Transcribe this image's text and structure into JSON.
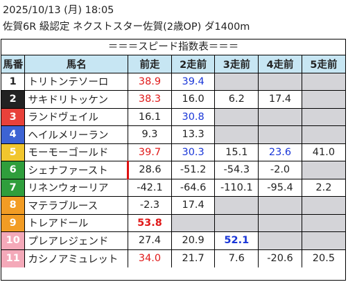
{
  "header": {
    "line1": "2025/10/13 (月) 18:05",
    "line2": "佐賀6R 級認定 ネクストスター佐賀(2歳OP) ダ1400m"
  },
  "banner": "＝＝＝スピード指数表＝＝＝",
  "columns": [
    "馬番",
    "馬名",
    "前走",
    "2走前",
    "3走前",
    "4走前",
    "5走前"
  ],
  "colors": {
    "header_bg": "#c7e6f3",
    "empty_cell": "#d4d4d8",
    "red": "#e01919",
    "blue": "#1936d8",
    "waku": {
      "1": {
        "bg": "#ffffff",
        "fg": "#222222"
      },
      "2": {
        "bg": "#222222",
        "fg": "#ffffff"
      },
      "3": {
        "bg": "#e8413a",
        "fg": "#ffffff"
      },
      "4": {
        "bg": "#3d63d3",
        "fg": "#ffffff"
      },
      "5": {
        "bg": "#f1c62e",
        "fg": "#ffffff"
      },
      "6": {
        "bg": "#2f9e3c",
        "fg": "#ffffff"
      },
      "7": {
        "bg": "#f29c24",
        "fg": "#ffffff"
      },
      "8": {
        "bg": "#f4a9b9",
        "fg": "#ffffff"
      }
    }
  },
  "rows": [
    {
      "num": "1",
      "waku": 1,
      "name": "トリトンテソーロ",
      "mark": false,
      "cells": [
        {
          "v": "38.9",
          "c": "red"
        },
        {
          "v": "39.4",
          "c": "blue"
        },
        {
          "v": ""
        },
        {
          "v": ""
        },
        {
          "v": ""
        }
      ]
    },
    {
      "num": "2",
      "waku": 2,
      "name": "サキドリトッケン",
      "mark": false,
      "cells": [
        {
          "v": "38.3",
          "c": "red"
        },
        {
          "v": "16.0"
        },
        {
          "v": "6.2"
        },
        {
          "v": "17.4"
        },
        {
          "v": ""
        }
      ]
    },
    {
      "num": "3",
      "waku": 3,
      "name": "ランドヴェイル",
      "mark": false,
      "cells": [
        {
          "v": "16.1"
        },
        {
          "v": "30.8",
          "c": "blue"
        },
        {
          "v": ""
        },
        {
          "v": ""
        },
        {
          "v": ""
        }
      ]
    },
    {
      "num": "4",
      "waku": 4,
      "name": "ヘイルメリーラン",
      "mark": false,
      "cells": [
        {
          "v": "9.3"
        },
        {
          "v": "13.3"
        },
        {
          "v": ""
        },
        {
          "v": ""
        },
        {
          "v": ""
        }
      ]
    },
    {
      "num": "5",
      "waku": 5,
      "name": "モーモーゴールド",
      "mark": false,
      "cells": [
        {
          "v": "39.7",
          "c": "red"
        },
        {
          "v": "30.3",
          "c": "blue"
        },
        {
          "v": "15.1"
        },
        {
          "v": "23.6",
          "c": "blue"
        },
        {
          "v": "41.0"
        }
      ]
    },
    {
      "num": "6",
      "waku": 6,
      "name": "シェナファースト",
      "mark": true,
      "cells": [
        {
          "v": "28.6"
        },
        {
          "v": "-51.2"
        },
        {
          "v": "-54.3"
        },
        {
          "v": "-2.0"
        },
        {
          "v": ""
        }
      ]
    },
    {
      "num": "7",
      "waku": 6,
      "name": "リネンウォーリア",
      "mark": false,
      "cells": [
        {
          "v": "-42.1"
        },
        {
          "v": "-64.6"
        },
        {
          "v": "-110.1"
        },
        {
          "v": "-95.4"
        },
        {
          "v": "2.2"
        }
      ]
    },
    {
      "num": "8",
      "waku": 7,
      "name": "マテラブルース",
      "mark": false,
      "cells": [
        {
          "v": "-2.3"
        },
        {
          "v": "17.4"
        },
        {
          "v": ""
        },
        {
          "v": ""
        },
        {
          "v": ""
        }
      ]
    },
    {
      "num": "9",
      "waku": 7,
      "name": "トレアドール",
      "mark": false,
      "cells": [
        {
          "v": "53.8",
          "c": "red",
          "b": true
        },
        {
          "v": ""
        },
        {
          "v": ""
        },
        {
          "v": ""
        },
        {
          "v": ""
        }
      ]
    },
    {
      "num": "10",
      "waku": 8,
      "name": "プレアレジェンド",
      "mark": false,
      "cells": [
        {
          "v": "27.4"
        },
        {
          "v": "20.9"
        },
        {
          "v": "52.1",
          "c": "blue",
          "b": true
        },
        {
          "v": ""
        },
        {
          "v": ""
        }
      ]
    },
    {
      "num": "11",
      "waku": 8,
      "name": "カシノアミュレット",
      "mark": false,
      "cells": [
        {
          "v": "34.0",
          "c": "red"
        },
        {
          "v": "21.7"
        },
        {
          "v": "7.6"
        },
        {
          "v": "-20.6"
        },
        {
          "v": "20.5"
        }
      ]
    }
  ]
}
